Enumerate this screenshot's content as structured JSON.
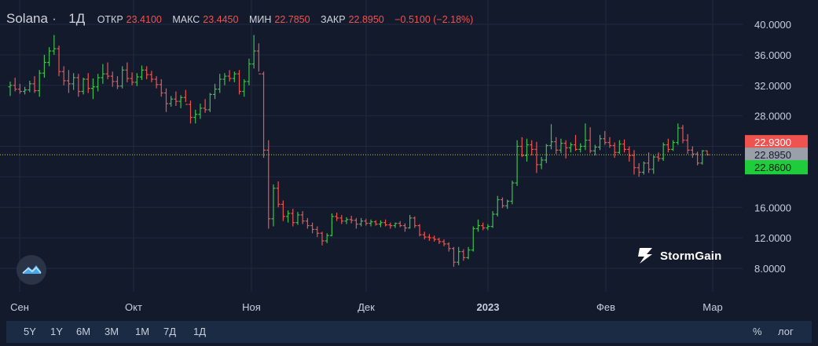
{
  "header": {
    "symbol": "Solana",
    "interval": "1Д",
    "open_label": "ОТКР",
    "open_value": "23.4100",
    "high_label": "МАКС",
    "high_value": "23.4450",
    "low_label": "МИН",
    "low_value": "22.7850",
    "close_label": "ЗАКР",
    "close_value": "22.8950",
    "change": "−0.5100 (−2.18%)"
  },
  "price_axis": {
    "ticks": [
      "40.0000",
      "36.0000",
      "32.0000",
      "28.0000",
      "16.0000",
      "12.0000",
      "8.0000"
    ],
    "badge_high": "22.9300",
    "badge_last": "22.8950",
    "badge_low": "22.8600"
  },
  "time_axis": {
    "labels": [
      "Сен",
      "Окт",
      "Ноя",
      "Дек",
      "2023",
      "Фев",
      "Мар"
    ]
  },
  "range_buttons": [
    "5Y",
    "1Y",
    "6M",
    "3M",
    "1M",
    "7Д",
    "1Д"
  ],
  "right_buttons": {
    "percent": "%",
    "log": "лог"
  },
  "watermark": "StormGain",
  "colors": {
    "up": "#26a69a",
    "up_alt": "#3fbf4f",
    "down": "#ef5350",
    "bg": "#131a2c",
    "grid": "#1f2940"
  },
  "chart_data": {
    "type": "ohlc",
    "title": "Solana",
    "interval": "1Д",
    "ylim": [
      8,
      40
    ],
    "last_price": 22.895,
    "x_labels": [
      "Сен",
      "Окт",
      "Ноя",
      "Дек",
      "2023",
      "Фев",
      "Мар"
    ],
    "series": [
      {
        "values": [
          [
            31.8,
            32.5,
            30.6,
            32.0
          ],
          [
            32.0,
            33.0,
            31.2,
            31.5
          ],
          [
            31.5,
            32.2,
            30.9,
            31.2
          ],
          [
            31.2,
            31.8,
            30.8,
            31.4
          ],
          [
            31.4,
            32.6,
            31.1,
            32.2
          ],
          [
            32.2,
            33.2,
            31.0,
            31.3
          ],
          [
            31.3,
            34.0,
            30.5,
            33.6
          ],
          [
            33.6,
            36.0,
            33.0,
            35.0
          ],
          [
            35.0,
            37.0,
            34.5,
            36.5
          ],
          [
            36.5,
            38.6,
            36.0,
            36.8
          ],
          [
            36.8,
            37.2,
            33.2,
            33.8
          ],
          [
            33.8,
            34.5,
            32.0,
            32.6
          ],
          [
            32.6,
            34.0,
            31.0,
            32.2
          ],
          [
            32.2,
            33.6,
            31.4,
            33.0
          ],
          [
            33.0,
            33.5,
            30.5,
            31.2
          ],
          [
            31.2,
            33.0,
            30.8,
            32.8
          ],
          [
            32.8,
            33.6,
            31.0,
            31.6
          ],
          [
            31.6,
            32.9,
            30.2,
            31.8
          ],
          [
            31.8,
            33.5,
            31.2,
            33.0
          ],
          [
            33.0,
            34.8,
            32.2,
            33.5
          ],
          [
            33.5,
            35.0,
            32.8,
            33.2
          ],
          [
            33.2,
            33.8,
            31.8,
            32.5
          ],
          [
            32.5,
            33.2,
            31.5,
            31.9
          ],
          [
            31.9,
            34.5,
            31.6,
            34.0
          ],
          [
            34.0,
            35.0,
            32.4,
            32.9
          ],
          [
            32.9,
            33.7,
            32.0,
            32.4
          ],
          [
            32.4,
            33.6,
            31.9,
            33.1
          ],
          [
            33.1,
            34.6,
            32.7,
            34.0
          ],
          [
            34.0,
            34.5,
            32.8,
            33.4
          ],
          [
            33.4,
            33.9,
            32.4,
            32.8
          ],
          [
            32.8,
            33.2,
            31.6,
            32.1
          ],
          [
            32.1,
            32.8,
            30.5,
            31.0
          ],
          [
            31.0,
            31.6,
            28.5,
            29.6
          ],
          [
            29.6,
            30.6,
            29.2,
            30.2
          ],
          [
            30.2,
            31.2,
            29.3,
            29.9
          ],
          [
            29.9,
            30.7,
            29.0,
            30.4
          ],
          [
            30.4,
            31.4,
            29.8,
            29.5
          ],
          [
            29.5,
            30.0,
            27.0,
            27.8
          ],
          [
            27.8,
            28.8,
            27.0,
            28.2
          ],
          [
            28.2,
            29.6,
            27.6,
            29.0
          ],
          [
            29.0,
            30.2,
            28.4,
            28.8
          ],
          [
            28.8,
            31.0,
            28.5,
            30.8
          ],
          [
            30.8,
            32.2,
            30.2,
            31.5
          ],
          [
            31.5,
            33.5,
            31.0,
            32.8
          ],
          [
            32.8,
            33.6,
            32.0,
            33.2
          ],
          [
            33.2,
            34.0,
            32.5,
            32.9
          ],
          [
            32.9,
            33.8,
            32.4,
            33.5
          ],
          [
            33.5,
            34.0,
            30.8,
            31.2
          ],
          [
            31.2,
            32.8,
            30.5,
            32.5
          ],
          [
            32.5,
            35.5,
            32.0,
            34.8
          ],
          [
            34.8,
            38.6,
            34.2,
            36.5
          ],
          [
            36.5,
            37.5,
            33.8,
            33.5
          ],
          [
            33.5,
            33.8,
            22.5,
            23.5
          ],
          [
            23.5,
            24.8,
            13.2,
            14.5
          ],
          [
            14.5,
            19.0,
            13.5,
            18.5
          ],
          [
            18.5,
            19.4,
            16.0,
            16.4
          ],
          [
            16.4,
            16.9,
            14.2,
            14.8
          ],
          [
            14.8,
            15.6,
            14.0,
            15.2
          ],
          [
            15.2,
            15.8,
            13.5,
            14.0
          ],
          [
            14.0,
            15.4,
            13.7,
            15.0
          ],
          [
            15.0,
            15.5,
            13.8,
            14.2
          ],
          [
            14.2,
            14.6,
            13.2,
            13.6
          ],
          [
            13.6,
            14.0,
            12.6,
            13.1
          ],
          [
            13.1,
            13.5,
            12.1,
            12.6
          ],
          [
            12.6,
            12.8,
            11.0,
            11.6
          ],
          [
            11.6,
            12.6,
            11.3,
            12.3
          ],
          [
            12.3,
            15.2,
            12.2,
            14.8
          ],
          [
            14.8,
            15.3,
            14.2,
            14.6
          ],
          [
            14.6,
            15.0,
            13.8,
            14.2
          ],
          [
            14.2,
            14.7,
            13.8,
            14.4
          ],
          [
            14.4,
            14.9,
            13.9,
            14.3
          ],
          [
            14.3,
            14.6,
            13.2,
            13.8
          ],
          [
            13.8,
            14.6,
            13.5,
            14.2
          ],
          [
            14.2,
            14.5,
            13.6,
            13.9
          ],
          [
            13.9,
            14.4,
            13.5,
            14.1
          ],
          [
            14.1,
            14.3,
            13.6,
            13.8
          ],
          [
            13.8,
            14.3,
            13.4,
            14.0
          ],
          [
            14.0,
            14.4,
            13.5,
            13.7
          ],
          [
            13.7,
            14.0,
            13.2,
            13.6
          ],
          [
            13.6,
            14.0,
            13.3,
            13.9
          ],
          [
            13.9,
            14.2,
            13.4,
            13.6
          ],
          [
            13.6,
            13.9,
            12.8,
            13.3
          ],
          [
            13.3,
            15.0,
            13.2,
            14.6
          ],
          [
            14.6,
            14.8,
            13.3,
            13.6
          ],
          [
            13.6,
            13.8,
            12.2,
            12.4
          ],
          [
            12.4,
            12.8,
            11.8,
            12.1
          ],
          [
            12.1,
            12.5,
            11.6,
            12.0
          ],
          [
            12.0,
            12.3,
            11.5,
            11.8
          ],
          [
            11.8,
            12.0,
            11.2,
            11.5
          ],
          [
            11.5,
            11.8,
            10.9,
            11.2
          ],
          [
            11.2,
            11.4,
            10.2,
            10.6
          ],
          [
            10.6,
            10.8,
            8.2,
            8.8
          ],
          [
            8.8,
            10.8,
            8.4,
            10.2
          ],
          [
            10.2,
            10.5,
            9.0,
            9.4
          ],
          [
            9.4,
            10.8,
            9.2,
            10.4
          ],
          [
            10.4,
            13.5,
            10.2,
            13.2
          ],
          [
            13.2,
            14.4,
            12.8,
            13.6
          ],
          [
            13.6,
            14.0,
            13.0,
            13.3
          ],
          [
            13.3,
            13.8,
            13.0,
            13.5
          ],
          [
            13.5,
            15.5,
            13.3,
            15.1
          ],
          [
            15.1,
            17.5,
            14.8,
            17.0
          ],
          [
            17.0,
            17.3,
            15.9,
            16.2
          ],
          [
            16.2,
            17.0,
            15.8,
            16.8
          ],
          [
            16.8,
            19.5,
            16.4,
            19.2
          ],
          [
            19.2,
            24.8,
            18.8,
            24.0
          ],
          [
            24.0,
            25.2,
            22.6,
            22.8
          ],
          [
            22.8,
            25.0,
            22.0,
            24.2
          ],
          [
            24.2,
            24.8,
            22.8,
            23.6
          ],
          [
            23.6,
            24.6,
            20.5,
            21.6
          ],
          [
            21.6,
            22.6,
            21.0,
            22.2
          ],
          [
            22.2,
            24.3,
            21.8,
            24.1
          ],
          [
            24.1,
            26.9,
            23.6,
            24.6
          ],
          [
            24.6,
            25.2,
            23.0,
            23.5
          ],
          [
            23.5,
            25.0,
            23.1,
            24.4
          ],
          [
            24.4,
            24.8,
            22.4,
            23.8
          ],
          [
            23.8,
            24.5,
            23.2,
            24.2
          ],
          [
            24.2,
            25.5,
            23.4,
            23.6
          ],
          [
            23.6,
            24.4,
            23.2,
            24.0
          ],
          [
            24.0,
            27.0,
            23.5,
            24.8
          ],
          [
            24.8,
            26.5,
            23.1,
            23.4
          ],
          [
            23.4,
            24.2,
            22.8,
            23.9
          ],
          [
            23.9,
            25.5,
            23.5,
            25.0
          ],
          [
            25.0,
            26.0,
            24.2,
            24.5
          ],
          [
            24.5,
            25.2,
            23.8,
            24.1
          ],
          [
            24.1,
            24.5,
            22.5,
            23.2
          ],
          [
            23.2,
            24.8,
            23.0,
            24.3
          ],
          [
            24.3,
            24.9,
            23.2,
            23.6
          ],
          [
            23.6,
            24.0,
            22.0,
            22.8
          ],
          [
            22.8,
            23.5,
            20.3,
            21.2
          ],
          [
            21.2,
            21.8,
            20.0,
            20.6
          ],
          [
            20.6,
            22.0,
            20.3,
            21.8
          ],
          [
            21.8,
            23.2,
            20.5,
            21.0
          ],
          [
            21.0,
            22.8,
            20.4,
            22.6
          ],
          [
            22.6,
            23.2,
            22.0,
            22.4
          ],
          [
            22.4,
            24.5,
            22.1,
            24.2
          ],
          [
            24.2,
            25.0,
            23.2,
            23.6
          ],
          [
            23.6,
            24.8,
            23.4,
            24.5
          ],
          [
            24.5,
            27.0,
            24.2,
            26.4
          ],
          [
            26.4,
            26.8,
            24.4,
            24.8
          ],
          [
            24.8,
            25.6,
            23.0,
            23.5
          ],
          [
            23.5,
            24.0,
            22.5,
            23.0
          ],
          [
            23.0,
            23.3,
            21.5,
            21.8
          ],
          [
            21.8,
            23.5,
            21.6,
            23.41
          ],
          [
            23.41,
            23.445,
            22.785,
            22.895
          ]
        ]
      }
    ]
  }
}
